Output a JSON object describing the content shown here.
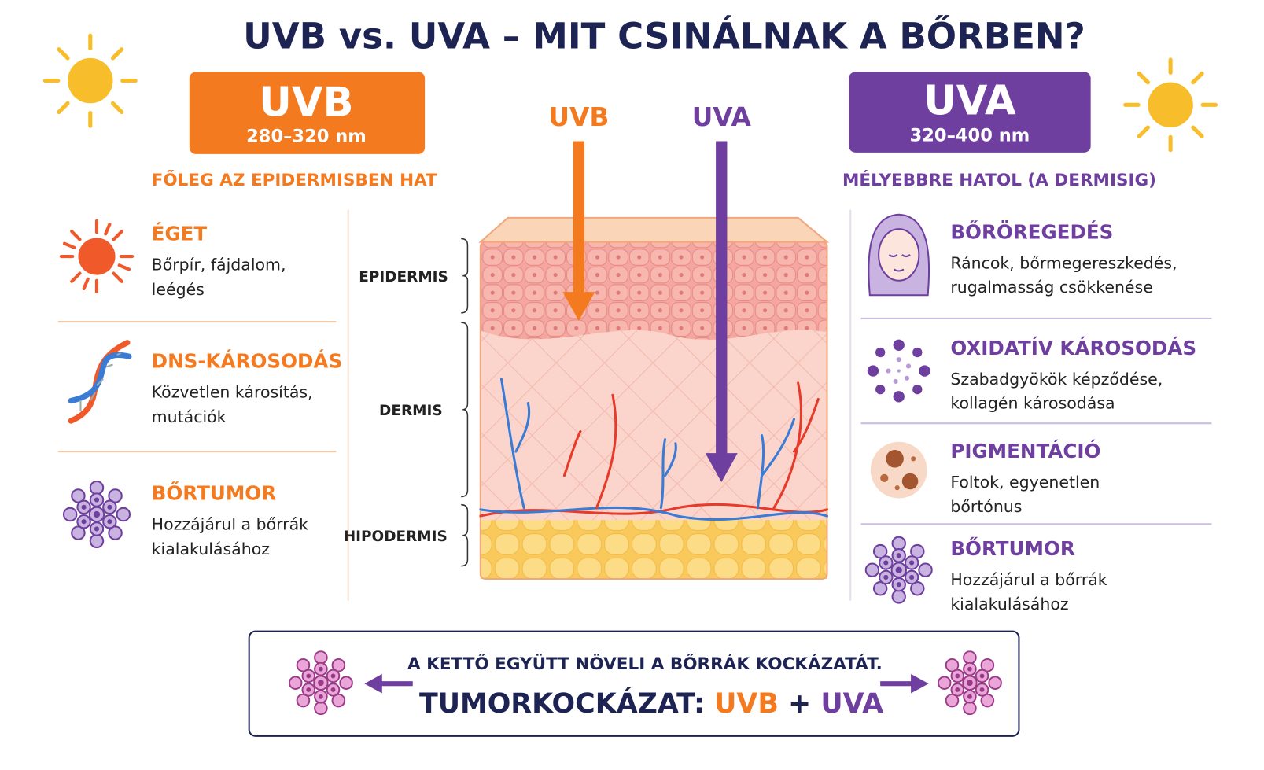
{
  "title": "UVB vs. UVA – MIT CSINÁLNAK A BŐRBEN?",
  "uvb": {
    "name": "UVB",
    "range": "280–320 nm",
    "subtitle": "FŐLEG AZ EPIDERMISBEN HAT",
    "effects": [
      {
        "title": "ÉGET",
        "lines": [
          "Bőrpír, fájdalom,",
          "leégés"
        ]
      },
      {
        "title": "DNS-KÁROSODÁS",
        "lines": [
          "Közvetlen károsítás,",
          "mutációk"
        ]
      },
      {
        "title": "BŐRTUMOR",
        "lines": [
          "Hozzájárul a bőrrák",
          "kialakulásához"
        ]
      }
    ]
  },
  "uva": {
    "name": "UVA",
    "range": "320–400 nm",
    "subtitle": "MÉLYEBBRE HATOL (A DERMISIG)",
    "effects": [
      {
        "title": "BŐRÖREGEDÉS",
        "lines": [
          "Ráncok, bőrmegereszkedés,",
          "rugalmasság csökkenése"
        ]
      },
      {
        "title": "OXIDATÍV KÁROSODÁS",
        "lines": [
          "Szabadgyökök képződése,",
          "kollagén károsodása"
        ]
      },
      {
        "title": "PIGMENTÁCIÓ",
        "lines": [
          "Foltok, egyenetlen",
          "bőrtónus"
        ]
      },
      {
        "title": "BŐRTUMOR",
        "lines": [
          "Hozzájárul a bőrrák",
          "kialakulásához"
        ]
      }
    ]
  },
  "diagram": {
    "arrows": [
      "UVB",
      "UVA"
    ],
    "layers": [
      "EPIDERMIS",
      "DERMIS",
      "HIPODERMIS"
    ]
  },
  "footer": {
    "note": "A KETTŐ EGYÜTT NÖVELI A BŐRRÁK KOCKÁZATÁT.",
    "label": "TUMORKOCKÁZAT:",
    "uvb": "UVB",
    "plus": "+",
    "uva": "UVA"
  }
}
